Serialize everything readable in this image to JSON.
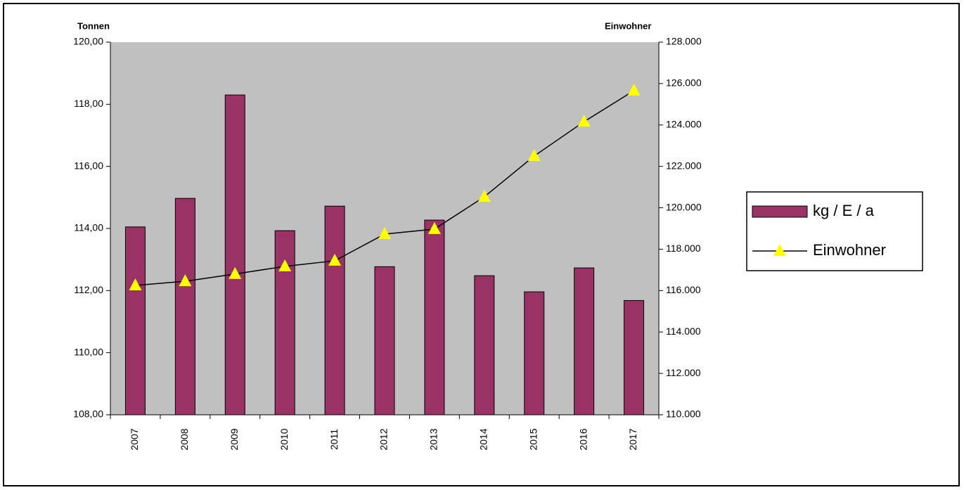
{
  "chart_data": {
    "type": "bar",
    "y_label": "Tonnen",
    "y2_label": "Einwohner",
    "categories": [
      "2007",
      "2008",
      "2009",
      "2010",
      "2011",
      "2012",
      "2013",
      "2014",
      "2015",
      "2016",
      "2017"
    ],
    "series": [
      {
        "name": "kg / E / a",
        "type": "bar",
        "color": "#993366",
        "values": [
          114.05,
          114.97,
          118.3,
          113.93,
          114.72,
          112.77,
          114.27,
          112.48,
          111.96,
          112.73,
          111.68
        ]
      },
      {
        "name": "Einwohner",
        "type": "line",
        "axis": "y2",
        "color": "#000000",
        "marker_color": "#ffff00",
        "values": [
          116250,
          116450,
          116800,
          117170,
          117440,
          118730,
          118970,
          120530,
          122500,
          124160,
          125660
        ]
      }
    ],
    "ylim": [
      108,
      120
    ],
    "yticks": [
      {
        "value": 108,
        "label": "108,00"
      },
      {
        "value": 110,
        "label": "110,00"
      },
      {
        "value": 112,
        "label": "112,00"
      },
      {
        "value": 114,
        "label": "114,00"
      },
      {
        "value": 116,
        "label": "116,00"
      },
      {
        "value": 118,
        "label": "118,00"
      },
      {
        "value": 120,
        "label": "120,00"
      }
    ],
    "y2lim": [
      110000,
      128000
    ],
    "y2ticks": [
      {
        "value": 110000,
        "label": "110.000"
      },
      {
        "value": 112000,
        "label": "112.000"
      },
      {
        "value": 114000,
        "label": "114.000"
      },
      {
        "value": 116000,
        "label": "116.000"
      },
      {
        "value": 118000,
        "label": "118.000"
      },
      {
        "value": 120000,
        "label": "120.000"
      },
      {
        "value": 122000,
        "label": "122.000"
      },
      {
        "value": 124000,
        "label": "124.000"
      },
      {
        "value": 126000,
        "label": "126.000"
      },
      {
        "value": 128000,
        "label": "128.000"
      }
    ],
    "plot_background": "#c0c0c0"
  }
}
